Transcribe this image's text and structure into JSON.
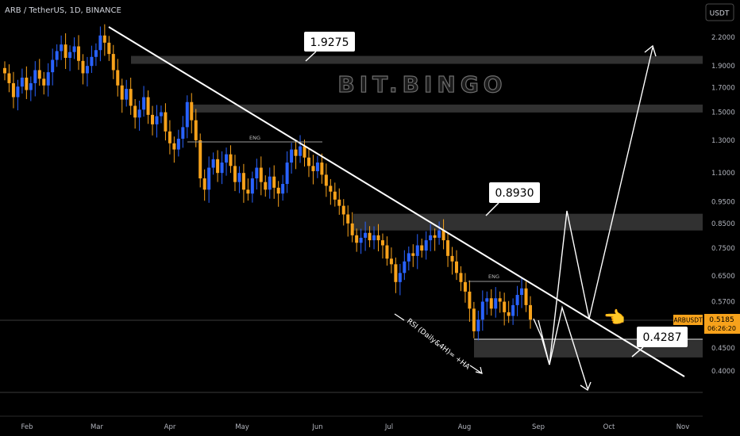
{
  "header": {
    "title": "ARB / TetherUS, 1D, BINANCE"
  },
  "currency_button": {
    "label": "USDT"
  },
  "watermark": {
    "text": "BIT.BINGO"
  },
  "chart_data": {
    "type": "candlestick",
    "symbol": "ARBUSDT",
    "y_scale": "log",
    "y_ticks": [
      "2.2000",
      "1.9000",
      "1.7000",
      "1.5000",
      "1.3000",
      "1.1000",
      "0.9500",
      "0.8500",
      "0.7500",
      "0.6500",
      "0.5700",
      "0.4500",
      "0.4000"
    ],
    "x_ticks": [
      "Feb",
      "Mar",
      "Apr",
      "May",
      "Jun",
      "Jul",
      "Aug",
      "Sep",
      "Oct",
      "Nov"
    ],
    "colors": {
      "up": "#2962ff",
      "down": "#f7a21b",
      "trendline": "#ffffff",
      "zone": "#5a5a5a",
      "price_tag": "#f7a21b"
    },
    "candles_close": [
      1.83,
      1.74,
      1.62,
      1.71,
      1.79,
      1.68,
      1.74,
      1.86,
      1.78,
      1.72,
      1.84,
      1.96,
      2.05,
      2.12,
      1.98,
      2.04,
      2.1,
      1.95,
      1.83,
      1.9,
      1.99,
      2.06,
      2.22,
      2.14,
      2.02,
      1.86,
      1.72,
      1.6,
      1.69,
      1.55,
      1.46,
      1.52,
      1.62,
      1.48,
      1.41,
      1.47,
      1.5,
      1.36,
      1.28,
      1.24,
      1.31,
      1.39,
      1.58,
      1.44,
      1.3,
      1.07,
      1.01,
      1.13,
      1.18,
      1.1,
      1.16,
      1.21,
      1.14,
      1.05,
      1.1,
      1.01,
      0.99,
      1.07,
      1.13,
      1.05,
      1.01,
      1.08,
      1.02,
      0.99,
      1.04,
      1.16,
      1.24,
      1.2,
      1.26,
      1.19,
      1.14,
      1.11,
      1.16,
      1.09,
      1.03,
      1.0,
      0.96,
      0.93,
      0.89,
      0.85,
      0.8,
      0.77,
      0.79,
      0.81,
      0.78,
      0.8,
      0.78,
      0.76,
      0.71,
      0.69,
      0.63,
      0.66,
      0.7,
      0.73,
      0.72,
      0.76,
      0.74,
      0.78,
      0.8,
      0.79,
      0.82,
      0.78,
      0.72,
      0.7,
      0.66,
      0.63,
      0.6,
      0.55,
      0.49,
      0.52,
      0.57,
      0.58,
      0.55,
      0.58,
      0.57,
      0.54,
      0.53,
      0.56,
      0.59,
      0.61,
      0.56,
      0.52
    ],
    "current_price": {
      "label": "ARBUSDT",
      "value": "0.5185",
      "countdown": "06:26:20"
    },
    "callouts": [
      {
        "text": "1.9275"
      },
      {
        "text": "0.8930"
      },
      {
        "text": "0.4287"
      }
    ],
    "annotations": [
      {
        "text": "ENG"
      },
      {
        "text": "ENG"
      },
      {
        "text": "RSI (Daily&4H)= +HA"
      }
    ],
    "emoji": {
      "icon": "pointing-hand",
      "glyph": "👈"
    },
    "support_zones": [
      [
        1.9275,
        2.0
      ],
      [
        1.5,
        1.56
      ],
      [
        0.82,
        0.893
      ],
      [
        0.4287,
        0.468
      ]
    ]
  }
}
